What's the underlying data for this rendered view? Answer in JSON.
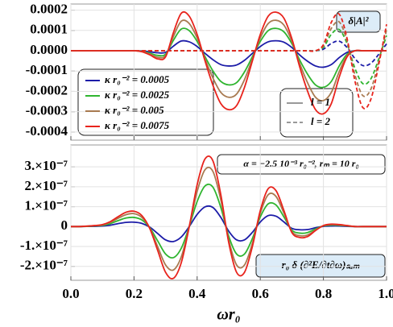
{
  "chart_data": [
    {
      "type": "line",
      "annotation": "δ|A|²",
      "x": [
        0,
        0.025,
        0.05,
        0.075,
        0.1,
        0.125,
        0.15,
        0.175,
        0.2,
        0.225,
        0.25,
        0.275,
        0.3,
        0.325,
        0.35,
        0.375,
        0.4,
        0.425,
        0.45,
        0.475,
        0.5,
        0.525,
        0.55,
        0.575,
        0.6,
        0.625,
        0.65,
        0.675,
        0.7,
        0.725,
        0.75,
        0.775,
        0.8,
        0.825,
        0.85,
        0.875,
        0.9,
        0.925,
        0.95,
        0.975,
        1
      ],
      "xlim": [
        0,
        1
      ],
      "ylim": [
        -0.00044,
        0.00023
      ],
      "yticks": [
        0.0002,
        0.0001,
        {
          "value": 0,
          "label": "0.0000"
        },
        -0.0001,
        -0.0002,
        -0.0003,
        -0.0004
      ],
      "grid": true,
      "style_legend": [
        {
          "label": "l = 1",
          "dash": "solid"
        },
        {
          "label": "l = 2",
          "dash": "dashed"
        }
      ],
      "series": [
        {
          "name": "κ r₀⁻² = 0.0005",
          "color": "#1c1ca8",
          "dash": "solid",
          "values": [
            0,
            0,
            0,
            0,
            0,
            0,
            0,
            0,
            0,
            -1e-06,
            -5e-06,
            -1e-05,
            -8e-06,
            2.3e-05,
            4.8e-05,
            4.4e-05,
            2.1e-05,
            -1.3e-05,
            -4.4e-05,
            -6.8e-05,
            -7.5e-05,
            -7e-05,
            -4.7e-05,
            -1.3e-05,
            2.1e-05,
            4.4e-05,
            4.9e-05,
            4.2e-05,
            1.6e-05,
            -2.1e-05,
            -5.2e-05,
            -7.5e-05,
            -8.1e-05,
            -6.8e-05,
            -3.4e-05,
            -8e-06,
            0,
            0,
            0,
            0,
            0
          ]
        },
        {
          "name": "κ r₀⁻² = 0.0025",
          "color": "#2fb52f",
          "dash": "solid",
          "values": [
            0,
            0,
            0,
            0,
            0,
            0,
            0,
            0,
            0,
            -3e-06,
            -1.2e-05,
            -2.3e-05,
            -1.7e-05,
            5.2e-05,
            0.000107,
            9.9e-05,
            4.6e-05,
            -2.9e-05,
            -9.9e-05,
            -0.000151,
            -0.000168,
            -0.000157,
            -0.000104,
            -2.9e-05,
            4.6e-05,
            9.9e-05,
            0.00011,
            9.3e-05,
            3.5e-05,
            -4.6e-05,
            -0.000116,
            -0.000168,
            -0.00018,
            -0.000151,
            -7.5e-05,
            -1.7e-05,
            0,
            0,
            0,
            0,
            0
          ]
        },
        {
          "name": "κ r₀⁻² = 0.005",
          "color": "#a87a50",
          "dash": "solid",
          "values": [
            0,
            0,
            0,
            0,
            0,
            0,
            0,
            0,
            0,
            -4e-06,
            -1.6e-05,
            -3.2e-05,
            -2.4e-05,
            7.1e-05,
            0.000146,
            0.000134,
            6.3e-05,
            -4e-05,
            -0.000134,
            -0.000205,
            -0.000229,
            -0.000213,
            -0.000142,
            -4e-05,
            6.3e-05,
            0.000134,
            0.00015,
            0.000126,
            4.7e-05,
            -6.3e-05,
            -0.000158,
            -0.000229,
            -0.000245,
            -0.000205,
            -0.000103,
            -2.4e-05,
            0,
            0,
            0,
            0,
            0
          ]
        },
        {
          "name": "κ r₀⁻² = 0.0075",
          "color": "#e8231c",
          "dash": "solid",
          "values": [
            0,
            0,
            0,
            0,
            0,
            0,
            0,
            0,
            0,
            -5e-06,
            -2e-05,
            -4e-05,
            -3e-05,
            9e-05,
            0.000185,
            0.00017,
            8e-05,
            -5e-05,
            -0.00017,
            -0.00026,
            -0.00029,
            -0.00027,
            -0.00018,
            -5e-05,
            8e-05,
            0.00017,
            0.00019,
            0.00016,
            6e-05,
            -8e-05,
            -0.0002,
            -0.00029,
            -0.00031,
            -0.00026,
            -0.00013,
            -3e-05,
            0,
            0,
            0,
            0,
            0
          ]
        },
        {
          "color": "#1c1ca8",
          "dash": "dashed",
          "values": [
            0,
            0,
            0,
            0,
            0,
            0,
            0,
            0,
            0,
            0,
            0,
            0,
            0,
            0,
            0,
            0,
            0,
            0,
            0,
            0,
            0,
            0,
            0,
            0,
            0,
            0,
            0,
            0,
            0,
            0,
            0,
            0,
            8e-06,
            3.6e-05,
            4.7e-05,
            1.6e-05,
            -3.9e-05,
            -7.3e-05,
            -6.2e-05,
            -1.8e-05,
            3.4e-05
          ]
        },
        {
          "color": "#2fb52f",
          "dash": "dashed",
          "values": [
            0,
            0,
            0,
            0,
            0,
            0,
            0,
            0,
            0,
            0,
            0,
            0,
            0,
            0,
            0,
            0,
            0,
            0,
            0,
            0,
            0,
            0,
            0,
            0,
            0,
            0,
            0,
            0,
            0,
            0,
            0,
            0,
            1.7e-05,
            8.1e-05,
            0.000104,
            3.5e-05,
            -8.7e-05,
            -0.000162,
            -0.000139,
            -4.1e-05,
            7.5e-05
          ]
        },
        {
          "color": "#a87a50",
          "dash": "dashed",
          "values": [
            0,
            0,
            0,
            0,
            0,
            0,
            0,
            0,
            0,
            0,
            0,
            0,
            0,
            0,
            0,
            0,
            0,
            0,
            0,
            0,
            0,
            0,
            0,
            0,
            0,
            0,
            0,
            0,
            0,
            0,
            0,
            0,
            2.4e-05,
            0.00011,
            0.000142,
            4.7e-05,
            -0.000119,
            -0.000221,
            -0.00019,
            -5.5e-05,
            0.000103
          ]
        },
        {
          "color": "#e8231c",
          "dash": "dashed",
          "values": [
            0,
            0,
            0,
            0,
            0,
            0,
            0,
            0,
            0,
            0,
            0,
            0,
            0,
            0,
            0,
            0,
            0,
            0,
            0,
            0,
            0,
            0,
            0,
            0,
            0,
            0,
            0,
            0,
            0,
            0,
            0,
            0,
            3e-05,
            0.00014,
            0.00018,
            6e-05,
            -0.00015,
            -0.00028,
            -0.00024,
            -7e-05,
            0.00013
          ]
        }
      ]
    },
    {
      "type": "line",
      "annotation": "α = −2.5 10⁻³ r₀⁻²,  rₘ = 10 r₀",
      "annotation2": "r₀ δ (∂²E/∂t∂ω)ₛᵤₘ",
      "x_label": "ωr₀",
      "x": [
        0,
        0.025,
        0.05,
        0.075,
        0.1,
        0.125,
        0.15,
        0.175,
        0.2,
        0.225,
        0.25,
        0.275,
        0.3,
        0.325,
        0.35,
        0.375,
        0.4,
        0.425,
        0.45,
        0.475,
        0.5,
        0.525,
        0.55,
        0.575,
        0.6,
        0.625,
        0.65,
        0.675,
        0.7,
        0.725,
        0.75,
        0.775,
        0.8,
        0.825,
        0.85,
        0.875,
        0.9,
        0.925,
        0.95,
        0.975,
        1
      ],
      "xlim": [
        0,
        1
      ],
      "xticks": [
        {
          "value": 0,
          "label": "0.0"
        },
        0.2,
        0.4,
        0.6,
        0.8,
        {
          "value": 1,
          "label": "1.0"
        }
      ],
      "ylim": [
        -2.7e-07,
        4.1e-07
      ],
      "yticks": [
        {
          "value": 3e-07,
          "label": "3.×10⁻⁷"
        },
        {
          "value": 2e-07,
          "label": "2.×10⁻⁷"
        },
        {
          "value": 1e-07,
          "label": "1.×10⁻⁷"
        },
        0,
        {
          "value": -1e-07,
          "label": "-1.×10⁻⁷"
        },
        {
          "value": -2e-07,
          "label": "-2.×10⁻⁷"
        }
      ],
      "grid": true,
      "series": [
        {
          "color": "#1c1ca8",
          "dash": "solid",
          "values": [
            0,
            0,
            1e-09,
            1e-09,
            3e-09,
            7e-09,
            1.5e-08,
            2.1e-08,
            2.2e-08,
            1.6e-08,
            -3e-09,
            -3.5e-08,
            -6.7e-08,
            -7.5e-08,
            -5.2e-08,
            0,
            6.1e-08,
            9.9e-08,
            9.6e-08,
            4.6e-08,
            -2.3e-08,
            -6.7e-08,
            -6.7e-08,
            -2.9e-08,
            2.3e-08,
            5.5e-08,
            5.2e-08,
            2.3e-08,
            -9e-09,
            -1.6e-08,
            -1.5e-08,
            -6e-09,
            1e-09,
            3e-09,
            3e-09,
            1e-09,
            0,
            0,
            0,
            0,
            0
          ]
        },
        {
          "color": "#2fb52f",
          "dash": "solid",
          "values": [
            0,
            0,
            1e-09,
            3e-09,
            6e-09,
            1.5e-08,
            3e-08,
            4.3e-08,
            4.6e-08,
            3.3e-08,
            -6e-09,
            -7.2e-08,
            -1.38e-07,
            -1.56e-07,
            -1.08e-07,
            0,
            1.26e-07,
            2.04e-07,
            1.98e-07,
            9.6e-08,
            -4.8e-08,
            -1.38e-07,
            -1.38e-07,
            -6e-08,
            4.8e-08,
            1.14e-07,
            1.08e-07,
            4.8e-08,
            -1.8e-08,
            -3.3e-08,
            -3e-08,
            -1.2e-08,
            3e-09,
            7e-09,
            6e-09,
            3e-09,
            0,
            0,
            0,
            0,
            0
          ]
        },
        {
          "color": "#a87a50",
          "dash": "solid",
          "values": [
            0,
            0,
            2e-09,
            4e-09,
            8e-09,
            2.1e-08,
            4.2e-08,
            6e-08,
            6.5e-08,
            4.6e-08,
            -8e-09,
            -1.01e-07,
            -1.93e-07,
            -2.18e-07,
            -1.51e-07,
            0,
            1.76e-07,
            2.86e-07,
            2.77e-07,
            1.34e-07,
            -6.7e-08,
            -1.93e-07,
            -1.93e-07,
            -8.4e-08,
            6.7e-08,
            1.6e-07,
            1.51e-07,
            6.7e-08,
            -2.5e-08,
            -4.6e-08,
            -4.2e-08,
            -1.7e-08,
            4e-09,
            1e-08,
            8e-09,
            4e-09,
            0,
            0,
            0,
            0,
            0
          ]
        },
        {
          "color": "#e8231c",
          "dash": "solid",
          "values": [
            0,
            0,
            2e-09,
            5e-09,
            1e-08,
            2.5e-08,
            5e-08,
            7.2e-08,
            7.7e-08,
            5.5e-08,
            -1e-08,
            -1.2e-07,
            -2.3e-07,
            -2.6e-07,
            -1.8e-07,
            0,
            2.1e-07,
            3.4e-07,
            3.3e-07,
            1.6e-07,
            -8e-08,
            -2.3e-07,
            -2.3e-07,
            -1e-07,
            8e-08,
            1.9e-07,
            1.8e-07,
            8e-08,
            -3e-08,
            -5.5e-08,
            -5e-08,
            -2e-08,
            5e-09,
            1.2e-08,
            1e-08,
            5e-09,
            0,
            0,
            0,
            0,
            0
          ]
        }
      ]
    }
  ]
}
